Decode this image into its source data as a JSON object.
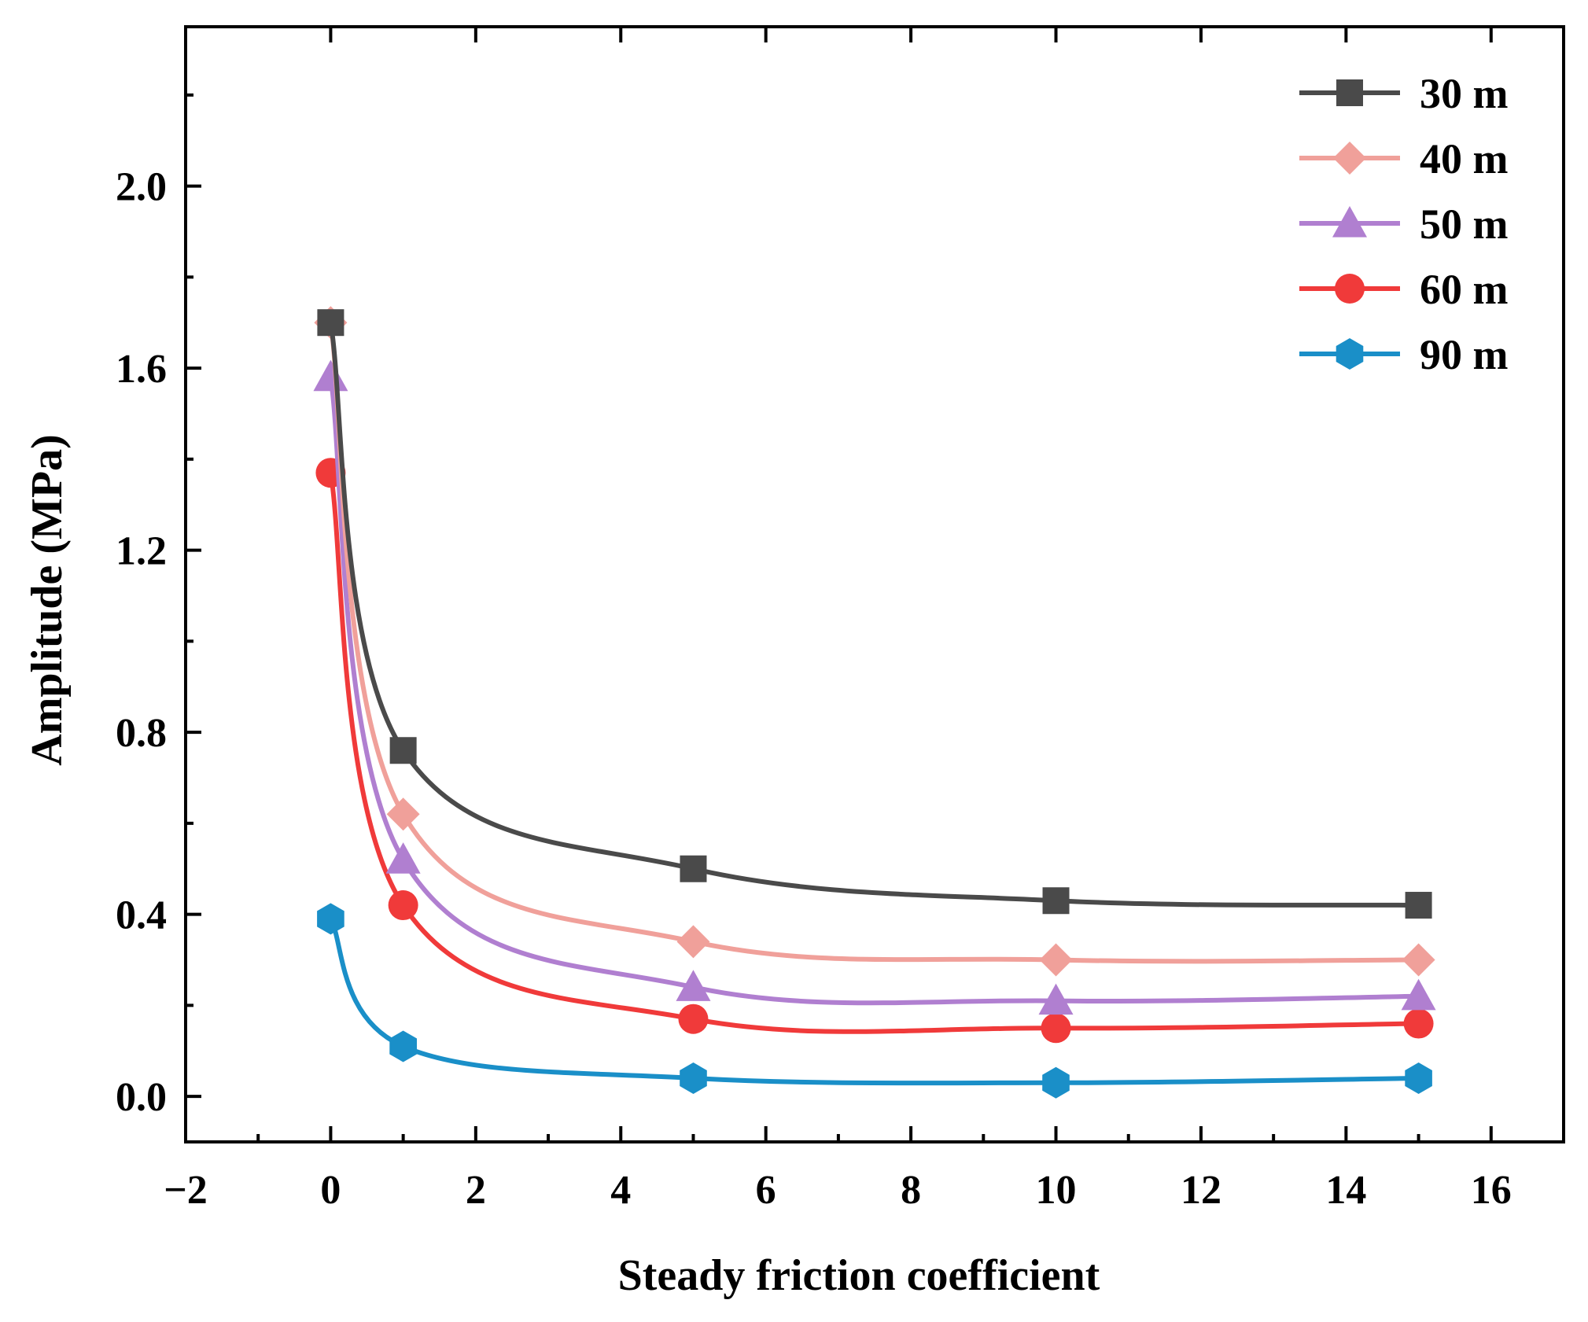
{
  "chart_data": {
    "type": "line",
    "title": "",
    "xlabel": "Steady friction coefficient",
    "ylabel": "Amplitude (MPa)",
    "xlim": [
      -2,
      17
    ],
    "ylim": [
      -0.1,
      2.35
    ],
    "xticks": [
      -2,
      0,
      2,
      4,
      6,
      8,
      10,
      12,
      14,
      16
    ],
    "xtick_labels": [
      "−2",
      "0",
      "2",
      "4",
      "6",
      "8",
      "10",
      "12",
      "14",
      "16"
    ],
    "yticks": [
      0.0,
      0.4,
      0.8,
      1.2,
      1.6,
      2.0
    ],
    "ytick_labels": [
      "0.0",
      "0.4",
      "0.8",
      "1.2",
      "1.6",
      "2.0"
    ],
    "grid": false,
    "legend_position": "top-right",
    "x": [
      0,
      1,
      5,
      10,
      15
    ],
    "series": [
      {
        "name": "30 m",
        "color": "#4a4a4a",
        "marker": "square",
        "values": [
          1.7,
          0.76,
          0.5,
          0.43,
          0.42
        ]
      },
      {
        "name": "40 m",
        "color": "#f0a09a",
        "marker": "diamond",
        "values": [
          1.7,
          0.62,
          0.34,
          0.3,
          0.3
        ]
      },
      {
        "name": "50 m",
        "color": "#b07fd0",
        "marker": "triangle",
        "values": [
          1.58,
          0.52,
          0.24,
          0.21,
          0.22
        ]
      },
      {
        "name": "60 m",
        "color": "#f03a3a",
        "marker": "circle",
        "values": [
          1.37,
          0.42,
          0.17,
          0.15,
          0.16
        ]
      },
      {
        "name": "90 m",
        "color": "#1a8fc8",
        "marker": "hexagon",
        "values": [
          0.39,
          0.11,
          0.04,
          0.03,
          0.04
        ]
      }
    ]
  }
}
